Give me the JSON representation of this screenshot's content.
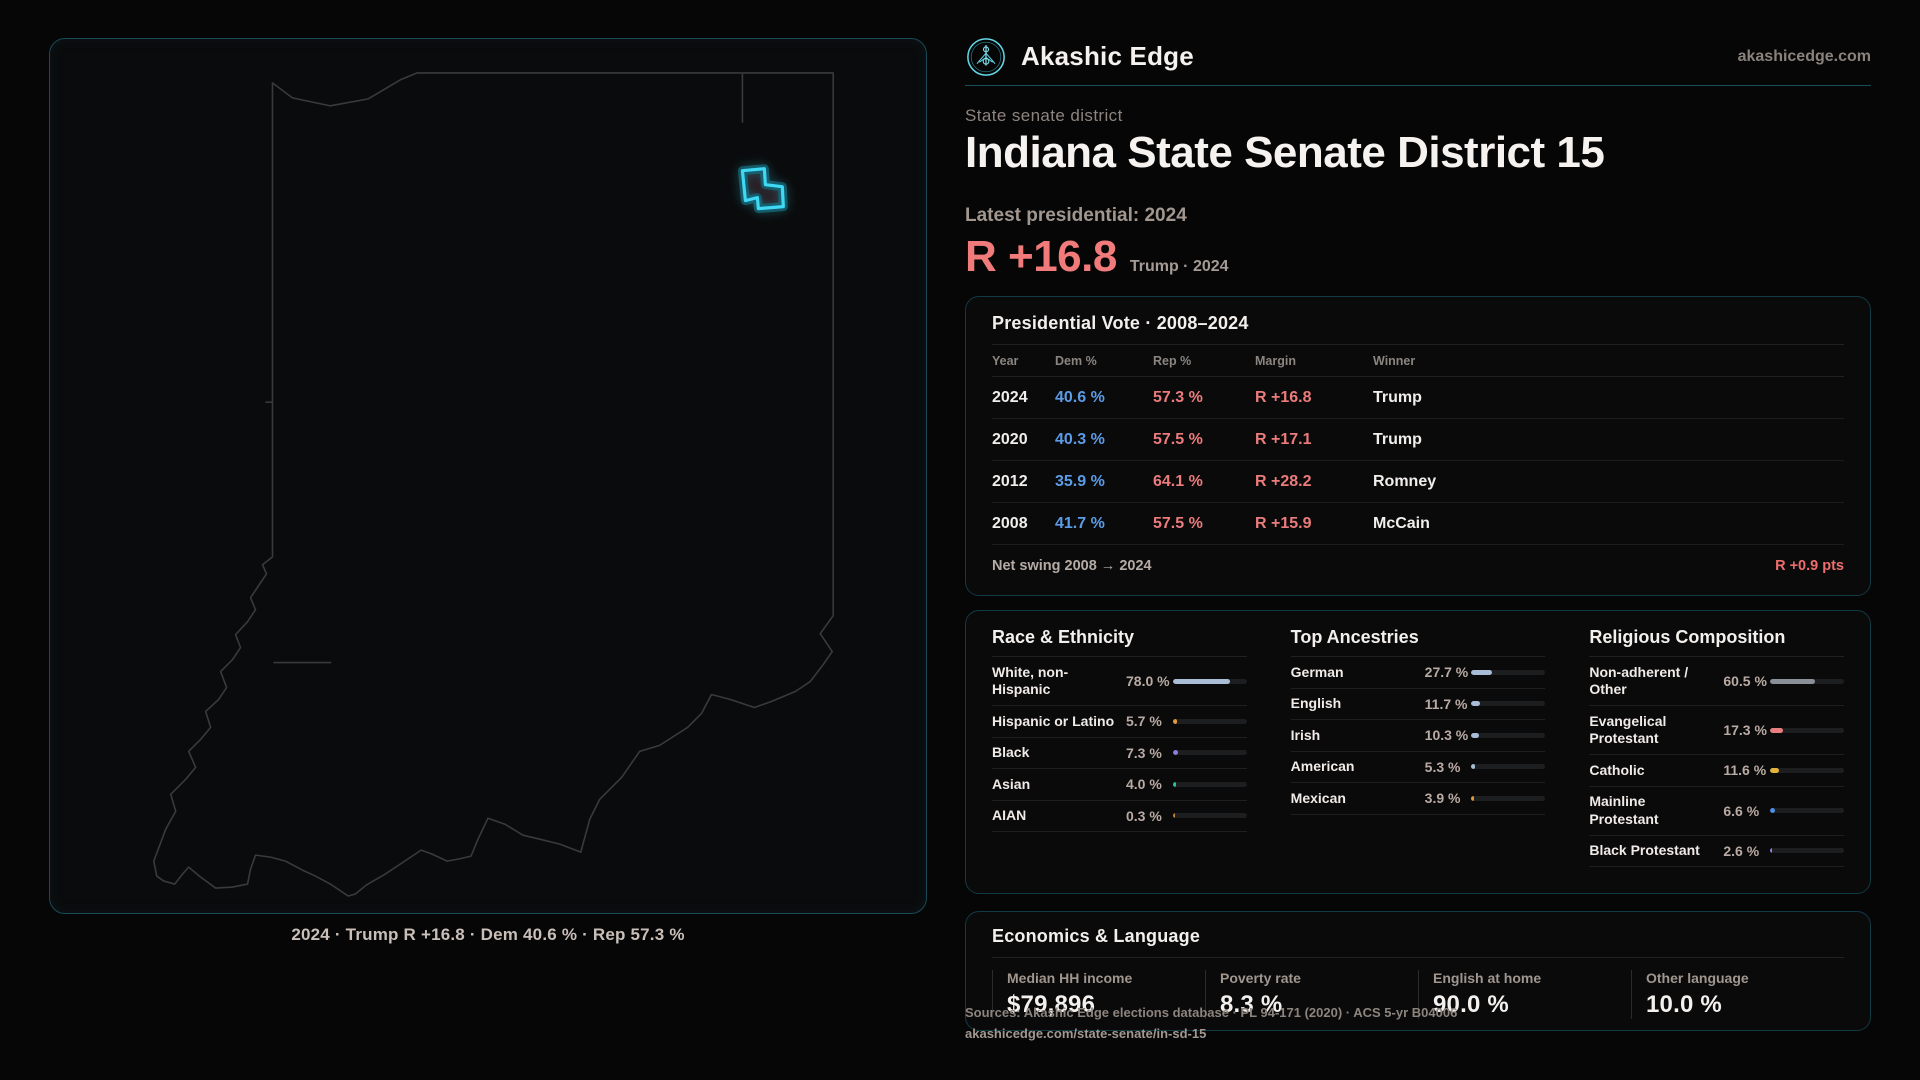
{
  "brand": {
    "name": "Akashic Edge",
    "domain": "akashicedge.com"
  },
  "page": {
    "eyebrow": "State senate district",
    "title": "Indiana State Senate District 15",
    "latest_label": "Latest presidential: 2024",
    "margin_value": "R +16.8",
    "margin_context": "Trump · 2024"
  },
  "map": {
    "state": "Indiana",
    "caption": "2024 · Trump R +16.8 · Dem 40.6 % · Rep 57.3 %"
  },
  "presidential": {
    "title": "Presidential Vote · 2008–2024",
    "columns": [
      "Year",
      "Dem %",
      "Rep %",
      "Margin",
      "Winner"
    ],
    "rows": [
      {
        "year": "2024",
        "dem": "40.6 %",
        "rep": "57.3 %",
        "margin": "R +16.8",
        "winner": "Trump"
      },
      {
        "year": "2020",
        "dem": "40.3 %",
        "rep": "57.5 %",
        "margin": "R +17.1",
        "winner": "Trump"
      },
      {
        "year": "2012",
        "dem": "35.9 %",
        "rep": "64.1 %",
        "margin": "R +28.2",
        "winner": "Romney"
      },
      {
        "year": "2008",
        "dem": "41.7 %",
        "rep": "57.5 %",
        "margin": "R +15.9",
        "winner": "McCain"
      }
    ],
    "net_swing_label": "Net swing 2008 → 2024",
    "net_swing_value": "R +0.9 pts"
  },
  "demographics": [
    {
      "title": "Race & Ethnicity",
      "rows": [
        {
          "label": "White, non-Hispanic",
          "value": "78.0 %",
          "pct": 78.0,
          "color": "#a9bed6"
        },
        {
          "label": "Hispanic or Latino",
          "value": "5.7 %",
          "pct": 5.7,
          "color": "#e09a3c"
        },
        {
          "label": "Black",
          "value": "7.3 %",
          "pct": 7.3,
          "color": "#8f7ae0"
        },
        {
          "label": "Asian",
          "value": "4.0 %",
          "pct": 4.0,
          "color": "#2fbf9a"
        },
        {
          "label": "AIAN",
          "value": "0.3 %",
          "pct": 0.3,
          "color": "#c27f35"
        }
      ]
    },
    {
      "title": "Top Ancestries",
      "rows": [
        {
          "label": "German",
          "value": "27.7 %",
          "pct": 27.7,
          "color": "#a9bed6"
        },
        {
          "label": "English",
          "value": "11.7 %",
          "pct": 11.7,
          "color": "#a9bed6"
        },
        {
          "label": "Irish",
          "value": "10.3 %",
          "pct": 10.3,
          "color": "#a9bed6"
        },
        {
          "label": "American",
          "value": "5.3 %",
          "pct": 5.3,
          "color": "#a9bed6"
        },
        {
          "label": "Mexican",
          "value": "3.9 %",
          "pct": 3.9,
          "color": "#e09a3c"
        }
      ]
    },
    {
      "title": "Religious Composition",
      "rows": [
        {
          "label": "Non-adherent / Other",
          "value": "60.5 %",
          "pct": 60.5,
          "color": "#8a8f98"
        },
        {
          "label": "Evangelical Protestant",
          "value": "17.3 %",
          "pct": 17.3,
          "color": "#e87f7f"
        },
        {
          "label": "Catholic",
          "value": "11.6 %",
          "pct": 11.6,
          "color": "#e3b33c"
        },
        {
          "label": "Mainline Protestant",
          "value": "6.6 %",
          "pct": 6.6,
          "color": "#4f8fe2"
        },
        {
          "label": "Black Protestant",
          "value": "2.6 %",
          "pct": 2.6,
          "color": "#9180e8"
        }
      ]
    }
  ],
  "economics": {
    "title": "Economics & Language",
    "stats": [
      {
        "label": "Median HH income",
        "value": "$79,896"
      },
      {
        "label": "Poverty rate",
        "value": "8.3 %"
      },
      {
        "label": "English at home",
        "value": "90.0 %"
      },
      {
        "label": "Other language",
        "value": "10.0 %"
      }
    ]
  },
  "footer": {
    "sources": "Sources: Akashic Edge elections database · PL 94-171 (2020) · ACS 5-yr B04006",
    "permalink": "akashicedge.com/state-senate/in-sd-15"
  },
  "colors": {
    "accent_cyan": "#3fd9f6",
    "dem_blue": "#5c9ce6",
    "rep_red": "#ec7b7b",
    "margin_display": "#f17b7b",
    "state_outline": "#3a3a3c"
  }
}
